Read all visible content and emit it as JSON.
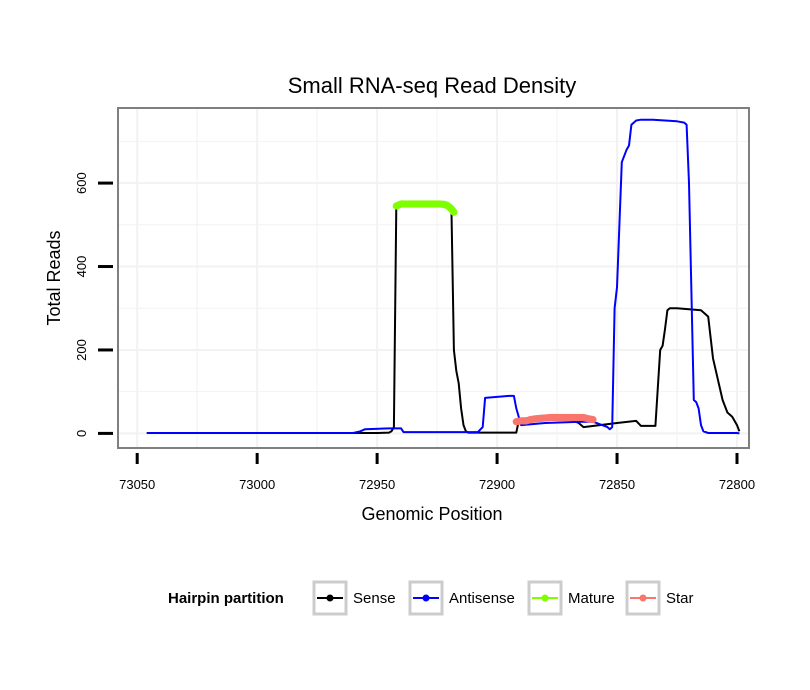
{
  "chart_data": {
    "type": "line",
    "title": "Small RNA-seq Read Density",
    "xlabel": "Genomic Position",
    "ylabel": "Total Reads",
    "x_reversed": true,
    "xlim": [
      73058,
      72795
    ],
    "ylim": [
      -35,
      780
    ],
    "x_ticks": [
      73050,
      73000,
      72950,
      72900,
      72850,
      72800
    ],
    "y_ticks": [
      0,
      200,
      400,
      600
    ],
    "grid": true,
    "legend": {
      "title": "Hairpin partition",
      "placement": "bottom",
      "entries": [
        {
          "name": "Sense",
          "color": "#000000"
        },
        {
          "name": "Antisense",
          "color": "#0000ff"
        },
        {
          "name": "Mature",
          "color": "#7fff00"
        },
        {
          "name": "Star",
          "color": "#f8766d"
        }
      ]
    },
    "series": [
      {
        "name": "Sense",
        "color": "#000000",
        "marker": false,
        "x": [
          73046,
          73000,
          72950,
          72945,
          72944,
          72943,
          72942,
          72941,
          72940,
          72930,
          72920,
          72919,
          72918,
          72917,
          72916,
          72915,
          72914,
          72913,
          72912,
          72910,
          72906,
          72905,
          72904,
          72892,
          72891,
          72890,
          72880,
          72870,
          72868,
          72866,
          72864,
          72850,
          72842,
          72840,
          72834,
          72832,
          72831,
          72830,
          72829,
          72828,
          72825,
          72815,
          72812,
          72810,
          72808,
          72806,
          72804,
          72802,
          72800,
          72799
        ],
        "y": [
          1,
          1,
          1,
          2,
          5,
          15,
          545,
          545,
          545,
          545,
          545,
          530,
          200,
          150,
          120,
          60,
          20,
          5,
          2,
          2,
          2,
          2,
          2,
          2,
          30,
          30,
          35,
          40,
          30,
          25,
          15,
          25,
          30,
          18,
          18,
          200,
          210,
          250,
          295,
          300,
          300,
          295,
          280,
          180,
          130,
          80,
          50,
          40,
          20,
          5
        ]
      },
      {
        "name": "Antisense",
        "color": "#0000ff",
        "marker": false,
        "x": [
          73046,
          72960,
          72957,
          72955,
          72945,
          72940,
          72939,
          72938,
          72935,
          72925,
          72914,
          72913,
          72908,
          72906,
          72905,
          72895,
          72893,
          72892,
          72890,
          72880,
          72865,
          72860,
          72854,
          72853,
          72852,
          72851,
          72850,
          72849,
          72848,
          72846,
          72845,
          72844,
          72842,
          72840,
          72835,
          72830,
          72825,
          72822,
          72821,
          72820,
          72818,
          72817,
          72816,
          72815,
          72814,
          72812,
          72800,
          72799
        ],
        "y": [
          1,
          1,
          5,
          10,
          12,
          12,
          3,
          3,
          3,
          3,
          3,
          3,
          3,
          15,
          85,
          90,
          90,
          60,
          20,
          25,
          28,
          28,
          15,
          10,
          15,
          300,
          350,
          500,
          650,
          680,
          690,
          740,
          750,
          752,
          752,
          750,
          748,
          745,
          740,
          600,
          80,
          75,
          60,
          20,
          5,
          1,
          1,
          0
        ]
      },
      {
        "name": "Mature",
        "color": "#7fff00",
        "marker": true,
        "x": [
          72942,
          72940,
          72938,
          72936,
          72934,
          72932,
          72930,
          72928,
          72926,
          72924,
          72922,
          72921,
          72920,
          72919,
          72918
        ],
        "y": [
          545,
          550,
          550,
          550,
          550,
          550,
          550,
          550,
          550,
          550,
          549,
          547,
          543,
          538,
          530
        ]
      },
      {
        "name": "Star",
        "color": "#f8766d",
        "marker": true,
        "x": [
          72892,
          72890,
          72888,
          72886,
          72884,
          72882,
          72880,
          72878,
          72876,
          72874,
          72872,
          72870,
          72868,
          72866,
          72864,
          72862,
          72860
        ],
        "y": [
          28,
          30,
          30,
          33,
          35,
          36,
          37,
          38,
          38,
          38,
          38,
          38,
          38,
          38,
          38,
          35,
          33
        ]
      }
    ]
  }
}
